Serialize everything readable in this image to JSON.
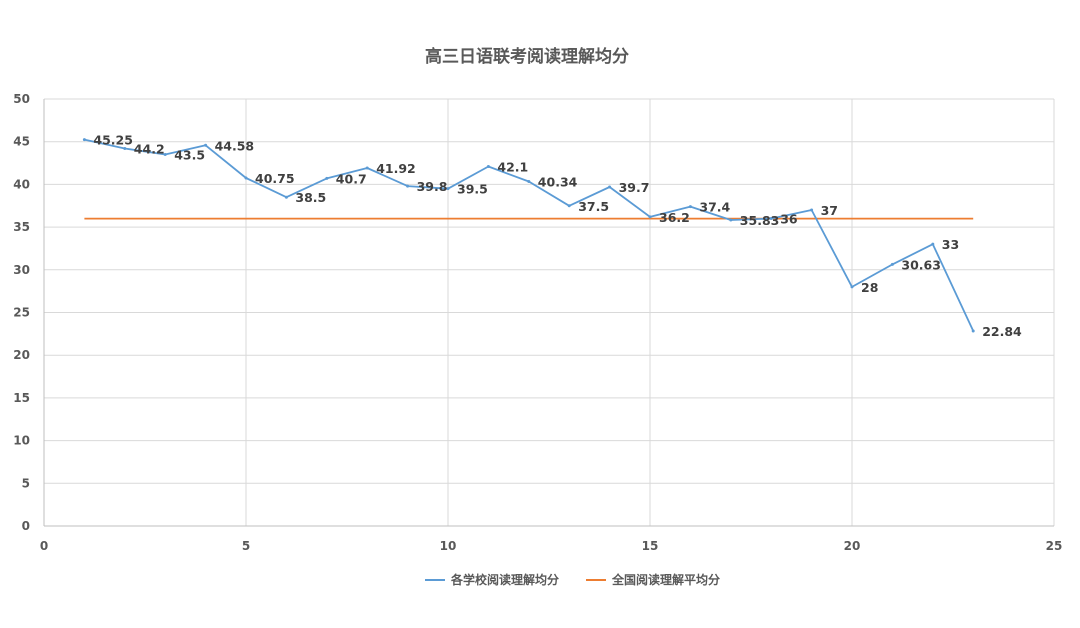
{
  "chart_data": {
    "type": "line",
    "title": "高三日语联考阅读理解均分",
    "xlabel": "",
    "ylabel": "",
    "xlim": [
      0,
      25
    ],
    "ylim": [
      0,
      50
    ],
    "x_ticks": [
      0,
      5,
      10,
      15,
      20,
      25
    ],
    "y_ticks": [
      0,
      5,
      10,
      15,
      20,
      25,
      30,
      35,
      40,
      45,
      50
    ],
    "grid": true,
    "legend_position": "bottom",
    "series": [
      {
        "name": "各学校阅读理解均分",
        "color": "#5B9BD5",
        "x": [
          1,
          2,
          3,
          4,
          5,
          6,
          7,
          8,
          9,
          10,
          11,
          12,
          13,
          14,
          15,
          16,
          17,
          18,
          19,
          20,
          21,
          22,
          23
        ],
        "values": [
          45.25,
          44.2,
          43.5,
          44.58,
          40.75,
          38.5,
          40.7,
          41.92,
          39.8,
          39.5,
          42.1,
          40.34,
          37.5,
          39.7,
          36.2,
          37.4,
          35.83,
          36,
          37,
          28,
          30.63,
          33,
          22.84
        ],
        "labels": [
          "45.25",
          "44.2",
          "43.5",
          "44.58",
          "40.75",
          "38.5",
          "40.7",
          "41.92",
          "39.8",
          "39.5",
          "42.1",
          "40.34",
          "37.5",
          "39.7",
          "36.2",
          "37.4",
          "35.83",
          "36",
          "37",
          "28",
          "30.63",
          "33",
          "22.84"
        ]
      },
      {
        "name": "全国阅读理解平均分",
        "color": "#ED7D31",
        "x": [
          1,
          23
        ],
        "values": [
          36,
          36
        ]
      }
    ]
  }
}
